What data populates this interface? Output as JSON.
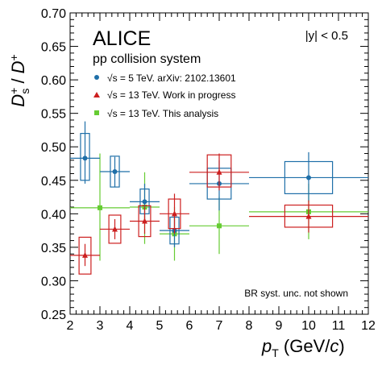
{
  "chart_data": {
    "type": "scatter",
    "title": "ALICE",
    "subtitle": "pp collision system",
    "rapidity_label": "|y| < 0.5",
    "note": "BR syst. unc. not shown",
    "ylabel": "D+s / D+",
    "xlabel": "pT (GeV/c)",
    "xlim": [
      2,
      12
    ],
    "ylim": [
      0.25,
      0.7
    ],
    "xticks": [
      "2",
      "3",
      "4",
      "5",
      "6",
      "7",
      "8",
      "9",
      "10",
      "11",
      "12"
    ],
    "yticks": [
      "0.25",
      "0.30",
      "0.35",
      "0.40",
      "0.45",
      "0.50",
      "0.55",
      "0.60",
      "0.65",
      "0.70"
    ],
    "legend_position": "upper-left",
    "grid": false,
    "series": [
      {
        "name": "√s = 5 TeV. arXiv: 2102.13601",
        "color": "#1f6fa8",
        "marker": "circle",
        "points": [
          {
            "x": 2.5,
            "y": 0.483,
            "xlo": 2.0,
            "xhi": 3.0,
            "ylo": 0.445,
            "yhi": 0.538,
            "sxlo": 2.35,
            "sxhi": 2.65,
            "sylo": 0.45,
            "syhi": 0.52
          },
          {
            "x": 3.5,
            "y": 0.463,
            "xlo": 3.0,
            "xhi": 4.0,
            "ylo": 0.44,
            "yhi": 0.485,
            "sxlo": 3.35,
            "sxhi": 3.65,
            "sylo": 0.44,
            "syhi": 0.486
          },
          {
            "x": 4.5,
            "y": 0.418,
            "xlo": 4.0,
            "xhi": 5.0,
            "ylo": 0.39,
            "yhi": 0.445,
            "sxlo": 4.35,
            "sxhi": 4.65,
            "sylo": 0.4,
            "syhi": 0.437
          },
          {
            "x": 5.5,
            "y": 0.375,
            "xlo": 5.0,
            "xhi": 6.0,
            "ylo": 0.35,
            "yhi": 0.4,
            "sxlo": 5.35,
            "sxhi": 5.65,
            "sylo": 0.355,
            "syhi": 0.395
          },
          {
            "x": 7.0,
            "y": 0.445,
            "xlo": 6.0,
            "xhi": 8.0,
            "ylo": 0.405,
            "yhi": 0.48,
            "sxlo": 6.6,
            "sxhi": 7.4,
            "sylo": 0.422,
            "syhi": 0.468
          },
          {
            "x": 10.0,
            "y": 0.454,
            "xlo": 8.0,
            "xhi": 12.0,
            "ylo": 0.418,
            "yhi": 0.492,
            "sxlo": 9.2,
            "sxhi": 10.8,
            "sylo": 0.43,
            "syhi": 0.478
          }
        ]
      },
      {
        "name": "√s = 13 TeV. Work in progress",
        "color": "#cc1f1f",
        "marker": "triangle",
        "points": [
          {
            "x": 2.5,
            "y": 0.338,
            "xlo": 2.0,
            "xhi": 3.0,
            "ylo": 0.322,
            "yhi": 0.355,
            "sxlo": 2.3,
            "sxhi": 2.7,
            "sylo": 0.31,
            "syhi": 0.365
          },
          {
            "x": 3.5,
            "y": 0.377,
            "xlo": 3.0,
            "xhi": 4.0,
            "ylo": 0.362,
            "yhi": 0.392,
            "sxlo": 3.3,
            "sxhi": 3.7,
            "sylo": 0.356,
            "syhi": 0.398
          },
          {
            "x": 4.5,
            "y": 0.389,
            "xlo": 4.0,
            "xhi": 5.0,
            "ylo": 0.37,
            "yhi": 0.41,
            "sxlo": 4.3,
            "sxhi": 4.7,
            "sylo": 0.366,
            "syhi": 0.412
          },
          {
            "x": 5.5,
            "y": 0.4,
            "xlo": 5.0,
            "xhi": 6.0,
            "ylo": 0.37,
            "yhi": 0.43,
            "sxlo": 5.3,
            "sxhi": 5.7,
            "sylo": 0.378,
            "syhi": 0.422
          },
          {
            "x": 7.0,
            "y": 0.462,
            "xlo": 6.0,
            "xhi": 8.0,
            "ylo": 0.435,
            "yhi": 0.49,
            "sxlo": 6.6,
            "sxhi": 7.4,
            "sylo": 0.44,
            "syhi": 0.488
          },
          {
            "x": 10.0,
            "y": 0.396,
            "xlo": 8.0,
            "xhi": 12.0,
            "ylo": 0.372,
            "yhi": 0.42,
            "sxlo": 9.2,
            "sxhi": 10.8,
            "sylo": 0.38,
            "syhi": 0.413
          }
        ]
      },
      {
        "name": "√s = 13 TeV. This analysis",
        "color": "#66cc33",
        "marker": "square",
        "points": [
          {
            "x": 3.0,
            "y": 0.409,
            "xlo": 2.0,
            "xhi": 4.0,
            "ylo": 0.33,
            "yhi": 0.49
          },
          {
            "x": 4.5,
            "y": 0.41,
            "xlo": 4.0,
            "xhi": 5.0,
            "ylo": 0.355,
            "yhi": 0.462
          },
          {
            "x": 5.5,
            "y": 0.37,
            "xlo": 5.0,
            "xhi": 6.0,
            "ylo": 0.33,
            "yhi": 0.41
          },
          {
            "x": 7.0,
            "y": 0.382,
            "xlo": 6.0,
            "xhi": 8.0,
            "ylo": 0.34,
            "yhi": 0.425
          },
          {
            "x": 10.0,
            "y": 0.403,
            "xlo": 8.0,
            "xhi": 12.0,
            "ylo": 0.362,
            "yhi": 0.445
          }
        ]
      }
    ]
  }
}
